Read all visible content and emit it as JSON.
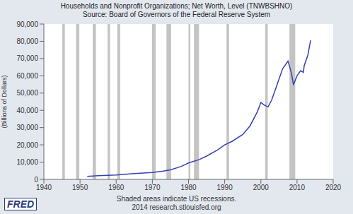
{
  "chart_data": {
    "type": "line",
    "title": "Households and Nonprofit Organizations; Net Worth, Level (TNWBSHNO)",
    "subtitle": "Source: Board of Governors of the Federal Reserve System",
    "y_label": "(Billions of Dollars)",
    "footer": [
      "Shaded areas indicate US recessions.",
      "2014 research.stlouisfed.org"
    ],
    "logo": "FRED",
    "x": [
      1952,
      1955,
      1960,
      1965,
      1970,
      1973,
      1975,
      1978,
      1980,
      1983,
      1985,
      1988,
      1990,
      1992,
      1995,
      1997,
      1999,
      2000,
      2001,
      2002,
      2003,
      2004,
      2005,
      2006,
      2007.5,
      2008,
      2008.5,
      2009,
      2009.25,
      2010,
      2011,
      2011.75,
      2012,
      2013,
      2013.75
    ],
    "series": [
      {
        "name": "TNWBSHNO",
        "color": "#3441b0",
        "values": [
          1700,
          2100,
          2600,
          3400,
          4000,
          4800,
          5500,
          7500,
          9500,
          11500,
          13500,
          17000,
          20000,
          22000,
          26000,
          31000,
          39000,
          44500,
          43000,
          42000,
          46000,
          52000,
          58000,
          64000,
          68500,
          65000,
          61000,
          55000,
          56000,
          60000,
          63000,
          62000,
          66000,
          72000,
          80500
        ]
      }
    ],
    "recessions": [
      [
        1945.1,
        1945.8
      ],
      [
        1948.9,
        1949.8
      ],
      [
        1953.5,
        1954.4
      ],
      [
        1957.6,
        1958.3
      ],
      [
        1960.3,
        1961.1
      ],
      [
        1969.9,
        1970.9
      ],
      [
        1973.9,
        1975.2
      ],
      [
        1980.0,
        1980.5
      ],
      [
        1981.5,
        1982.9
      ],
      [
        1990.5,
        1991.2
      ],
      [
        2001.2,
        2001.9
      ],
      [
        2007.9,
        2009.5
      ]
    ],
    "recession_color": "#c4c4c4",
    "xlim": [
      1940,
      2020
    ],
    "xticks": [
      1940,
      1950,
      1960,
      1970,
      1980,
      1990,
      2000,
      2010,
      2020
    ],
    "ylim": [
      0,
      90000
    ],
    "yticks": [
      0,
      {
        "value": 10000,
        "label": "10,000"
      },
      {
        "value": 20000,
        "label": "20,000"
      },
      {
        "value": 30000,
        "label": "30,000"
      },
      {
        "value": 40000,
        "label": "40,000"
      },
      {
        "value": 50000,
        "label": "50,000"
      },
      {
        "value": 60000,
        "label": "60,000"
      },
      {
        "value": 70000,
        "label": "70,000"
      },
      {
        "value": 80000,
        "label": "80,000"
      },
      {
        "value": 90000,
        "label": "90,000"
      }
    ],
    "grid": false
  }
}
